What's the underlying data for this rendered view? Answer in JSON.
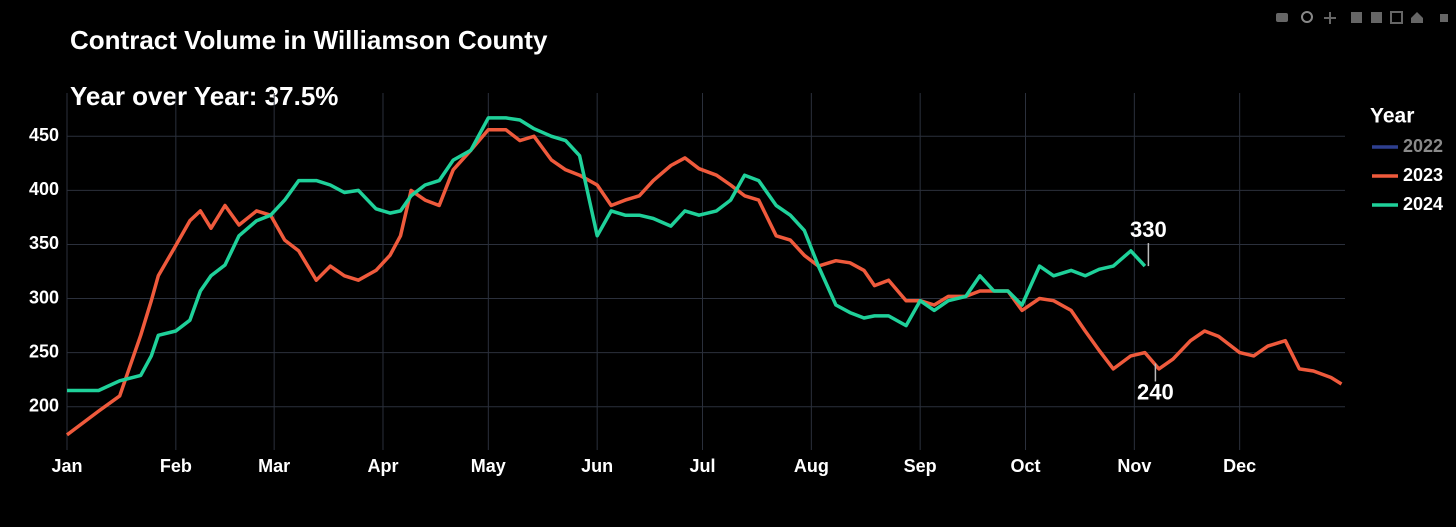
{
  "chart_data": {
    "type": "line",
    "title": "Contract Volume in Williamson County",
    "subtitle": "Year over Year: 37.5%",
    "legend_title": "Year",
    "legend_position": "right",
    "grid": true,
    "xlim": [
      1,
      365
    ],
    "ylim": [
      160,
      490
    ],
    "yticks": [
      200,
      250,
      300,
      350,
      400,
      450
    ],
    "xticks": [
      {
        "value": 1,
        "label": "Jan"
      },
      {
        "value": 32,
        "label": "Feb"
      },
      {
        "value": 60,
        "label": "Mar"
      },
      {
        "value": 91,
        "label": "Apr"
      },
      {
        "value": 121,
        "label": "May"
      },
      {
        "value": 152,
        "label": "Jun"
      },
      {
        "value": 182,
        "label": "Jul"
      },
      {
        "value": 213,
        "label": "Aug"
      },
      {
        "value": 244,
        "label": "Sep"
      },
      {
        "value": 274,
        "label": "Oct"
      },
      {
        "value": 305,
        "label": "Nov"
      },
      {
        "value": 335,
        "label": "Dec"
      }
    ],
    "x": [
      1,
      10,
      16,
      22,
      25,
      27,
      32,
      36,
      39,
      42,
      46,
      50,
      55,
      59,
      63,
      67,
      72,
      76,
      80,
      84,
      89,
      93,
      96,
      99,
      103,
      107,
      111,
      116,
      121,
      126,
      130,
      134,
      139,
      143,
      147,
      152,
      156,
      160,
      164,
      168,
      173,
      177,
      181,
      186,
      190,
      194,
      198,
      203,
      207,
      211,
      215,
      220,
      224,
      228,
      231,
      235,
      240,
      244,
      248,
      252,
      257,
      261,
      265,
      269,
      273,
      278,
      282,
      287,
      291,
      295,
      299,
      304,
      308,
      312,
      316,
      321,
      325,
      329,
      335,
      339,
      343,
      348,
      352,
      356,
      361,
      364
    ],
    "series": [
      {
        "name": "2022",
        "color": "#2e3f8f",
        "hidden": true,
        "values": [
          null,
          null,
          null,
          null,
          null,
          null,
          null,
          null,
          null,
          null,
          null,
          null,
          null,
          null,
          null,
          null,
          null,
          null,
          null,
          null,
          null,
          null,
          null,
          null,
          null,
          null,
          null,
          null,
          null,
          null,
          null,
          null,
          null,
          null,
          null,
          null,
          null,
          null,
          null,
          null,
          null,
          null,
          null,
          null,
          null,
          null,
          null,
          null,
          null,
          null,
          null,
          null,
          null,
          null,
          null,
          null,
          null,
          null,
          null,
          null,
          null,
          null,
          null,
          null,
          null,
          null,
          null,
          null,
          null,
          null,
          null,
          null,
          null,
          null,
          null,
          null,
          null,
          null,
          null,
          null,
          null,
          null,
          null,
          null,
          null,
          null
        ]
      },
      {
        "name": "2023",
        "color": "#ef5a3c",
        "values": [
          174,
          196,
          210,
          266,
          298,
          321,
          349,
          372,
          381,
          365,
          386,
          368,
          381,
          377,
          354,
          344,
          317,
          330,
          321,
          317,
          326,
          340,
          358,
          400,
          391,
          386,
          419,
          437,
          456,
          456,
          446,
          450,
          428,
          419,
          414,
          405,
          386,
          391,
          395,
          409,
          423,
          430,
          420,
          414,
          405,
          395,
          391,
          358,
          354,
          340,
          330,
          335,
          333,
          326,
          312,
          317,
          298,
          298,
          294,
          302,
          302,
          307,
          307,
          307,
          289,
          300,
          298,
          289,
          270,
          252,
          235,
          247,
          250,
          235,
          244,
          261,
          270,
          265,
          250,
          247,
          256,
          261,
          235,
          233,
          227,
          221
        ]
      },
      {
        "name": "2024",
        "color": "#1fd19a",
        "values": [
          215,
          215,
          224,
          229,
          247,
          266,
          270,
          280,
          307,
          321,
          331,
          358,
          372,
          377,
          391,
          409,
          409,
          405,
          398,
          400,
          383,
          379,
          381,
          395,
          405,
          409,
          428,
          437,
          467,
          467,
          465,
          457,
          450,
          446,
          432,
          358,
          381,
          377,
          377,
          374,
          367,
          381,
          377,
          381,
          391,
          414,
          409,
          386,
          377,
          363,
          330,
          294,
          287,
          282,
          284,
          284,
          275,
          298,
          289,
          298,
          302,
          321,
          307,
          307,
          294,
          330,
          321,
          326,
          321,
          327,
          330,
          344,
          330,
          null,
          null,
          null,
          null,
          null,
          null,
          null,
          null,
          null,
          null,
          null,
          null,
          null
        ]
      }
    ],
    "annotations": [
      {
        "text": "330",
        "x": 309,
        "y": 330
      },
      {
        "text": "240",
        "x": 311,
        "y": 240
      }
    ]
  }
}
